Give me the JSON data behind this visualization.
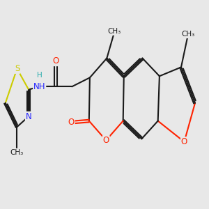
{
  "bg": "#e8e8e8",
  "bond_color": "#1a1a1a",
  "lw": 1.5,
  "atom_colors": {
    "O": "#ff2200",
    "N": "#2222ff",
    "S": "#cccc00",
    "H": "#22aaaa",
    "C": "#1a1a1a"
  },
  "fs": 8.5,
  "fs_me": 7.5,
  "figsize": [
    3.0,
    3.0
  ],
  "dpi": 100,
  "xlim": [
    0,
    10
  ],
  "ylim": [
    0,
    10
  ]
}
